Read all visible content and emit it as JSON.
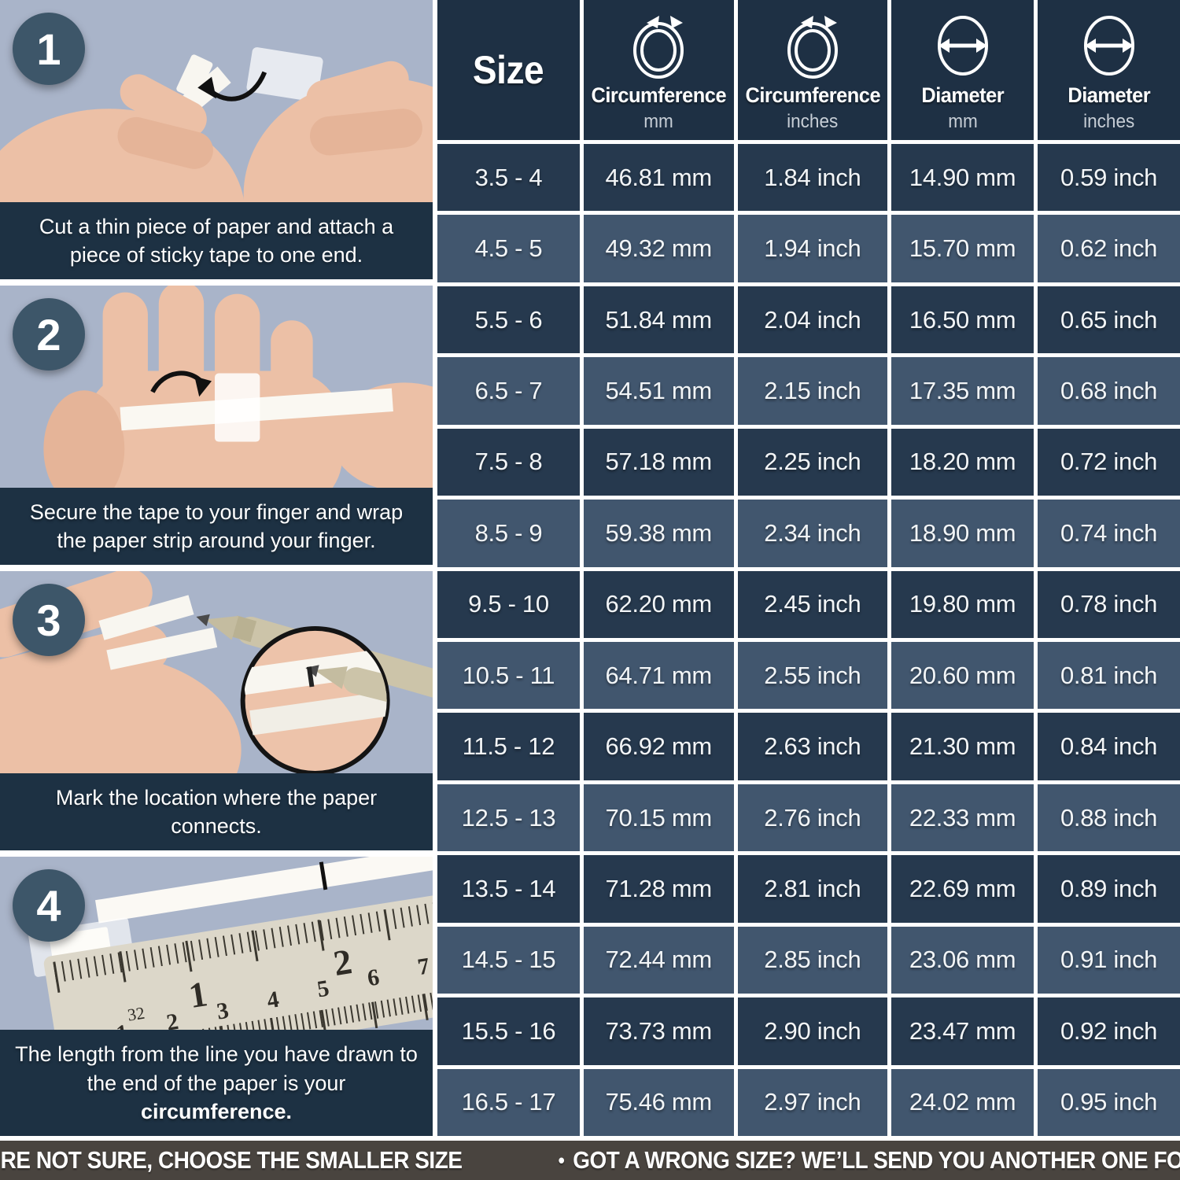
{
  "steps": [
    {
      "number": "1",
      "caption": "Cut a thin piece of paper and attach a piece of sticky tape to one end.",
      "caption_bold": ""
    },
    {
      "number": "2",
      "caption": "Secure the tape to your finger and wrap the paper strip around your finger.",
      "caption_bold": ""
    },
    {
      "number": "3",
      "caption": "Mark the location where the paper connects.",
      "caption_bold": ""
    },
    {
      "number": "4",
      "caption": "The length from the line you have drawn to the end of the paper is your ",
      "caption_bold": "circumference."
    }
  ],
  "table": {
    "headers": [
      {
        "title": "Size",
        "subtitle": "",
        "icon": ""
      },
      {
        "title": "Circumference",
        "subtitle": "mm",
        "icon": "circumference-icon"
      },
      {
        "title": "Circumference",
        "subtitle": "inches",
        "icon": "circumference-icon"
      },
      {
        "title": "Diameter",
        "subtitle": "mm",
        "icon": "diameter-icon"
      },
      {
        "title": "Diameter",
        "subtitle": "inches",
        "icon": "diameter-icon"
      }
    ],
    "rows": [
      [
        "3.5 - 4",
        "46.81 mm",
        "1.84 inch",
        "14.90 mm",
        "0.59 inch"
      ],
      [
        "4.5 - 5",
        "49.32 mm",
        "1.94 inch",
        "15.70 mm",
        "0.62 inch"
      ],
      [
        "5.5 - 6",
        "51.84 mm",
        "2.04 inch",
        "16.50 mm",
        "0.65 inch"
      ],
      [
        "6.5 - 7",
        "54.51 mm",
        "2.15 inch",
        "17.35 mm",
        "0.68 inch"
      ],
      [
        "7.5 - 8",
        "57.18 mm",
        "2.25 inch",
        "18.20 mm",
        "0.72 inch"
      ],
      [
        "8.5 - 9",
        "59.38 mm",
        "2.34 inch",
        "18.90 mm",
        "0.74 inch"
      ],
      [
        "9.5 - 10",
        "62.20 mm",
        "2.45 inch",
        "19.80 mm",
        "0.78 inch"
      ],
      [
        "10.5 - 11",
        "64.71 mm",
        "2.55 inch",
        "20.60 mm",
        "0.81 inch"
      ],
      [
        "11.5 - 12",
        "66.92 mm",
        "2.63 inch",
        "21.30 mm",
        "0.84 inch"
      ],
      [
        "12.5 - 13",
        "70.15 mm",
        "2.76 inch",
        "22.33 mm",
        "0.88 inch"
      ],
      [
        "13.5 - 14",
        "71.28 mm",
        "2.81 inch",
        "22.69 mm",
        "0.89 inch"
      ],
      [
        "14.5 - 15",
        "72.44 mm",
        "2.85 inch",
        "23.06 mm",
        "0.91 inch"
      ],
      [
        "15.5 - 16",
        "73.73 mm",
        "2.90 inch",
        "23.47 mm",
        "0.92 inch"
      ],
      [
        "16.5 - 17",
        "75.46 mm",
        "2.97 inch",
        "24.02 mm",
        "0.95 inch"
      ]
    ]
  },
  "footer": {
    "bullet": "•",
    "items": [
      "IF YOU’RE NOT SURE, CHOOSE THE SMALLER SIZE",
      "GOT A WRONG SIZE? WE’LL SEND YOU ANOTHER ONE FOR FREE"
    ]
  },
  "colors": {
    "table_header_bg": "#1e3044",
    "row_dark": "#26394e",
    "row_light": "#41566e",
    "caption_bg": "#1d3143",
    "photo_bg": "#a9b4c9",
    "footer_bg": "#49443f",
    "badge_bg": "#3d5669",
    "cell_text": "#f2f5f7",
    "subtitle_text": "#c7ced6"
  }
}
